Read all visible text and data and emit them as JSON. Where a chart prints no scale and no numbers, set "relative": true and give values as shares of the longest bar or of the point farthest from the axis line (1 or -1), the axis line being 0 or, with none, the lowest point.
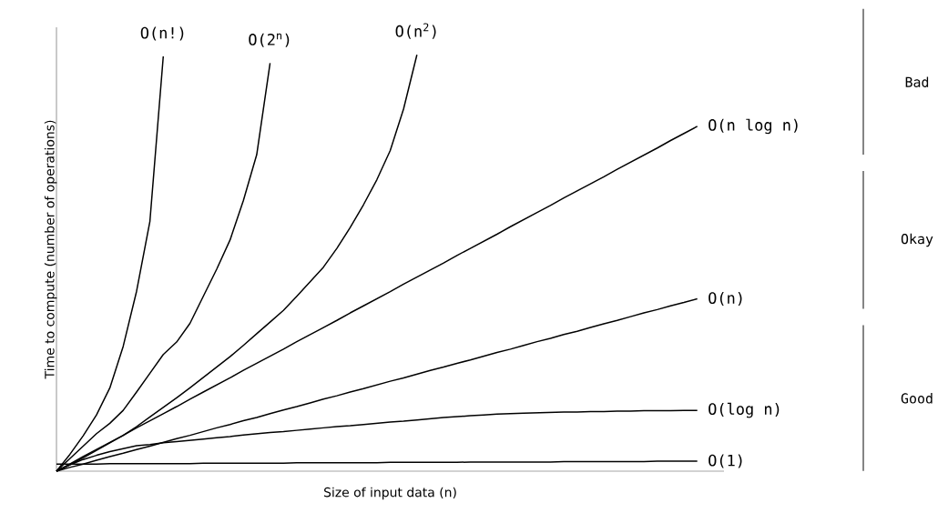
{
  "chart_data": {
    "type": "line",
    "relative": true,
    "xlabel": "Size of input data (n)",
    "ylabel": "Time to compute (number of operations)",
    "marker": "none",
    "line_style": "solid",
    "annotations": [
      "Bad",
      "Okay",
      "Good"
    ],
    "categories": [
      null,
      null,
      null,
      null,
      null,
      null,
      null,
      null,
      null,
      null,
      null,
      null,
      null,
      null,
      null,
      null,
      null,
      null,
      null,
      null,
      null,
      null,
      null,
      null,
      null,
      null,
      null,
      null,
      null,
      null,
      null,
      null,
      null,
      null,
      null,
      null,
      null,
      null,
      null,
      null,
      null,
      null,
      null,
      null,
      null,
      null,
      null,
      null,
      null
    ],
    "series": [
      {
        "name": "O(n!)",
        "color": "#000000",
        "values": [
          0,
          0.04,
          0.085,
          0.135,
          0.2,
          0.3,
          0.432,
          0.6,
          0.996,
          null,
          null,
          null,
          null,
          null,
          null,
          null,
          null,
          null,
          null,
          null,
          null,
          null,
          null,
          null,
          null,
          null,
          null,
          null,
          null,
          null,
          null,
          null,
          null,
          null,
          null,
          null,
          null,
          null,
          null,
          null,
          null,
          null,
          null,
          null,
          null,
          null,
          null,
          null,
          null
        ]
      },
      {
        "name": "O(2$^{n}$)",
        "color": "#000000",
        "values": [
          0,
          0.03,
          0.06,
          0.09,
          0.115,
          0.146,
          0.19,
          0.235,
          0.28,
          0.31,
          0.355,
          0.42,
          0.485,
          0.555,
          0.65,
          0.76,
          0.98,
          null,
          null,
          null,
          null,
          null,
          null,
          null,
          null,
          null,
          null,
          null,
          null,
          null,
          null,
          null,
          null,
          null,
          null,
          null,
          null,
          null,
          null,
          null,
          null,
          null,
          null,
          null,
          null,
          null,
          null,
          null,
          null
        ]
      },
      {
        "name": "O(n$^{2}$)",
        "color": "#000000",
        "values": [
          0,
          0.015,
          0.032,
          0.05,
          0.068,
          0.086,
          0.107,
          0.13,
          0.153,
          0.176,
          0.2,
          0.225,
          0.25,
          0.275,
          0.302,
          0.33,
          0.358,
          0.386,
          0.42,
          0.455,
          0.49,
          0.535,
          0.585,
          0.64,
          0.7,
          0.77,
          0.87,
          1.0,
          null,
          null,
          null,
          null,
          null,
          null,
          null,
          null,
          null,
          null,
          null,
          null,
          null,
          null,
          null,
          null,
          null,
          null,
          null,
          null,
          null
        ]
      },
      {
        "name": "O(n log n)",
        "color": "#000000",
        "values": [
          0,
          0.017,
          0.035,
          0.052,
          0.069,
          0.086,
          0.104,
          0.121,
          0.138,
          0.155,
          0.173,
          0.19,
          0.207,
          0.224,
          0.242,
          0.259,
          0.276,
          0.293,
          0.311,
          0.328,
          0.345,
          0.362,
          0.38,
          0.397,
          0.414,
          0.431,
          0.449,
          0.466,
          0.483,
          0.5,
          0.518,
          0.535,
          0.552,
          0.569,
          0.587,
          0.604,
          0.621,
          0.638,
          0.656,
          0.673,
          0.69,
          0.707,
          0.725,
          0.742,
          0.759,
          0.776,
          0.794,
          0.811,
          0.828
        ]
      },
      {
        "name": "O(n)",
        "color": "#000000",
        "values": [
          0,
          0.009,
          0.017,
          0.026,
          0.035,
          0.043,
          0.052,
          0.06,
          0.069,
          0.078,
          0.086,
          0.095,
          0.104,
          0.112,
          0.121,
          0.129,
          0.138,
          0.147,
          0.155,
          0.164,
          0.173,
          0.181,
          0.19,
          0.198,
          0.207,
          0.216,
          0.224,
          0.233,
          0.242,
          0.25,
          0.259,
          0.267,
          0.276,
          0.285,
          0.293,
          0.302,
          0.311,
          0.319,
          0.328,
          0.336,
          0.345,
          0.354,
          0.362,
          0.371,
          0.38,
          0.388,
          0.397,
          0.405,
          0.414
        ]
      },
      {
        "name": "O(log n)",
        "color": "#000000",
        "values": [
          0,
          0.015,
          0.028,
          0.038,
          0.047,
          0.054,
          0.061,
          0.064,
          0.068,
          0.071,
          0.074,
          0.077,
          0.08,
          0.083,
          0.087,
          0.09,
          0.093,
          0.095,
          0.098,
          0.101,
          0.104,
          0.107,
          0.109,
          0.112,
          0.115,
          0.118,
          0.12,
          0.123,
          0.126,
          0.129,
          0.131,
          0.133,
          0.135,
          0.137,
          0.138,
          0.139,
          0.14,
          0.141,
          0.142,
          0.142,
          0.143,
          0.143,
          0.144,
          0.144,
          0.145,
          0.145,
          0.145,
          0.146,
          0.146
        ]
      },
      {
        "name": "O(1)",
        "color": "#000000",
        "values": [
          0.017,
          0.017,
          0.017,
          0.017,
          0.018,
          0.018,
          0.018,
          0.018,
          0.018,
          0.018,
          0.018,
          0.019,
          0.019,
          0.019,
          0.019,
          0.019,
          0.019,
          0.019,
          0.02,
          0.02,
          0.02,
          0.02,
          0.02,
          0.02,
          0.02,
          0.021,
          0.021,
          0.021,
          0.021,
          0.021,
          0.021,
          0.022,
          0.022,
          0.022,
          0.022,
          0.022,
          0.022,
          0.022,
          0.023,
          0.023,
          0.023,
          0.023,
          0.023,
          0.023,
          0.023,
          0.024,
          0.024,
          0.024,
          0.024
        ]
      }
    ]
  }
}
